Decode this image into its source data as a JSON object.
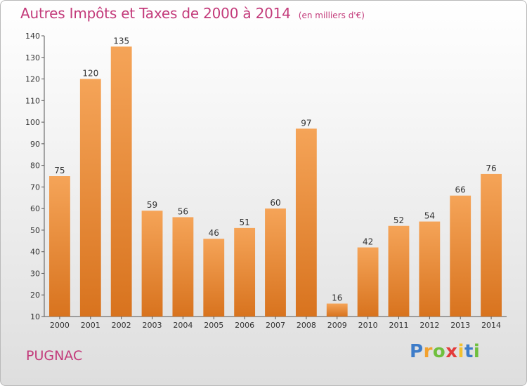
{
  "header": {
    "title": "Autres Impôts et Taxes de 2000 à 2014",
    "subtitle": "(en milliers d'€)"
  },
  "footer": {
    "commune": "PUGNAC",
    "logo_letters": [
      "P",
      "r",
      "o",
      "x",
      "i",
      "t",
      "i"
    ],
    "logo_colors": [
      "#3d7cc9",
      "#f2a12e",
      "#6fbf3e",
      "#e33b3b",
      "#f2c12e",
      "#3d7cc9",
      "#6fbf3e"
    ]
  },
  "chart_data": {
    "type": "bar",
    "categories": [
      "2000",
      "2001",
      "2002",
      "2003",
      "2004",
      "2005",
      "2006",
      "2007",
      "2008",
      "2009",
      "2010",
      "2011",
      "2012",
      "2013",
      "2014"
    ],
    "values": [
      75,
      120,
      135,
      59,
      56,
      46,
      51,
      60,
      97,
      16,
      42,
      52,
      54,
      66,
      76
    ],
    "title": "Autres Impôts et Taxes de 2000 à 2014",
    "subtitle": "(en milliers d'€)",
    "ylim": [
      10,
      140
    ],
    "yticks": [
      10,
      20,
      30,
      40,
      50,
      60,
      70,
      80,
      90,
      100,
      110,
      120,
      130,
      140
    ],
    "grid": false,
    "data_labels": true,
    "bar_color_top": "#f5a458",
    "bar_color_bottom": "#d8731e"
  }
}
